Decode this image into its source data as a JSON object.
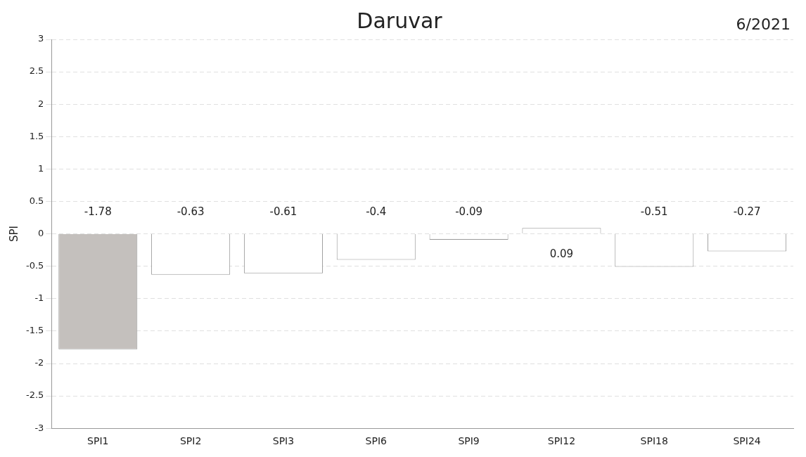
{
  "chart_data": {
    "type": "bar",
    "title": "Daruvar",
    "annotations": [
      "6/2021"
    ],
    "ylabel": "SPI",
    "categories": [
      "SPI1",
      "SPI2",
      "SPI3",
      "SPI6",
      "SPI9",
      "SPI12",
      "SPI18",
      "SPI24"
    ],
    "values": [
      -1.78,
      -0.63,
      -0.61,
      -0.4,
      -0.09,
      0.09,
      -0.51,
      -0.27
    ],
    "colors": [
      "#c4c0bd",
      "#ffffff",
      "#ffffff",
      "#ffffff",
      "#ffffff",
      "#ffffff",
      "#ffffff",
      "#ffffff"
    ],
    "ylim": [
      -3,
      3
    ],
    "yticks": [
      -3,
      -2.5,
      -2,
      -1.5,
      -1,
      -0.5,
      0,
      0.5,
      1,
      1.5,
      2,
      2.5,
      3
    ],
    "grid": "y",
    "data_labels": true
  }
}
